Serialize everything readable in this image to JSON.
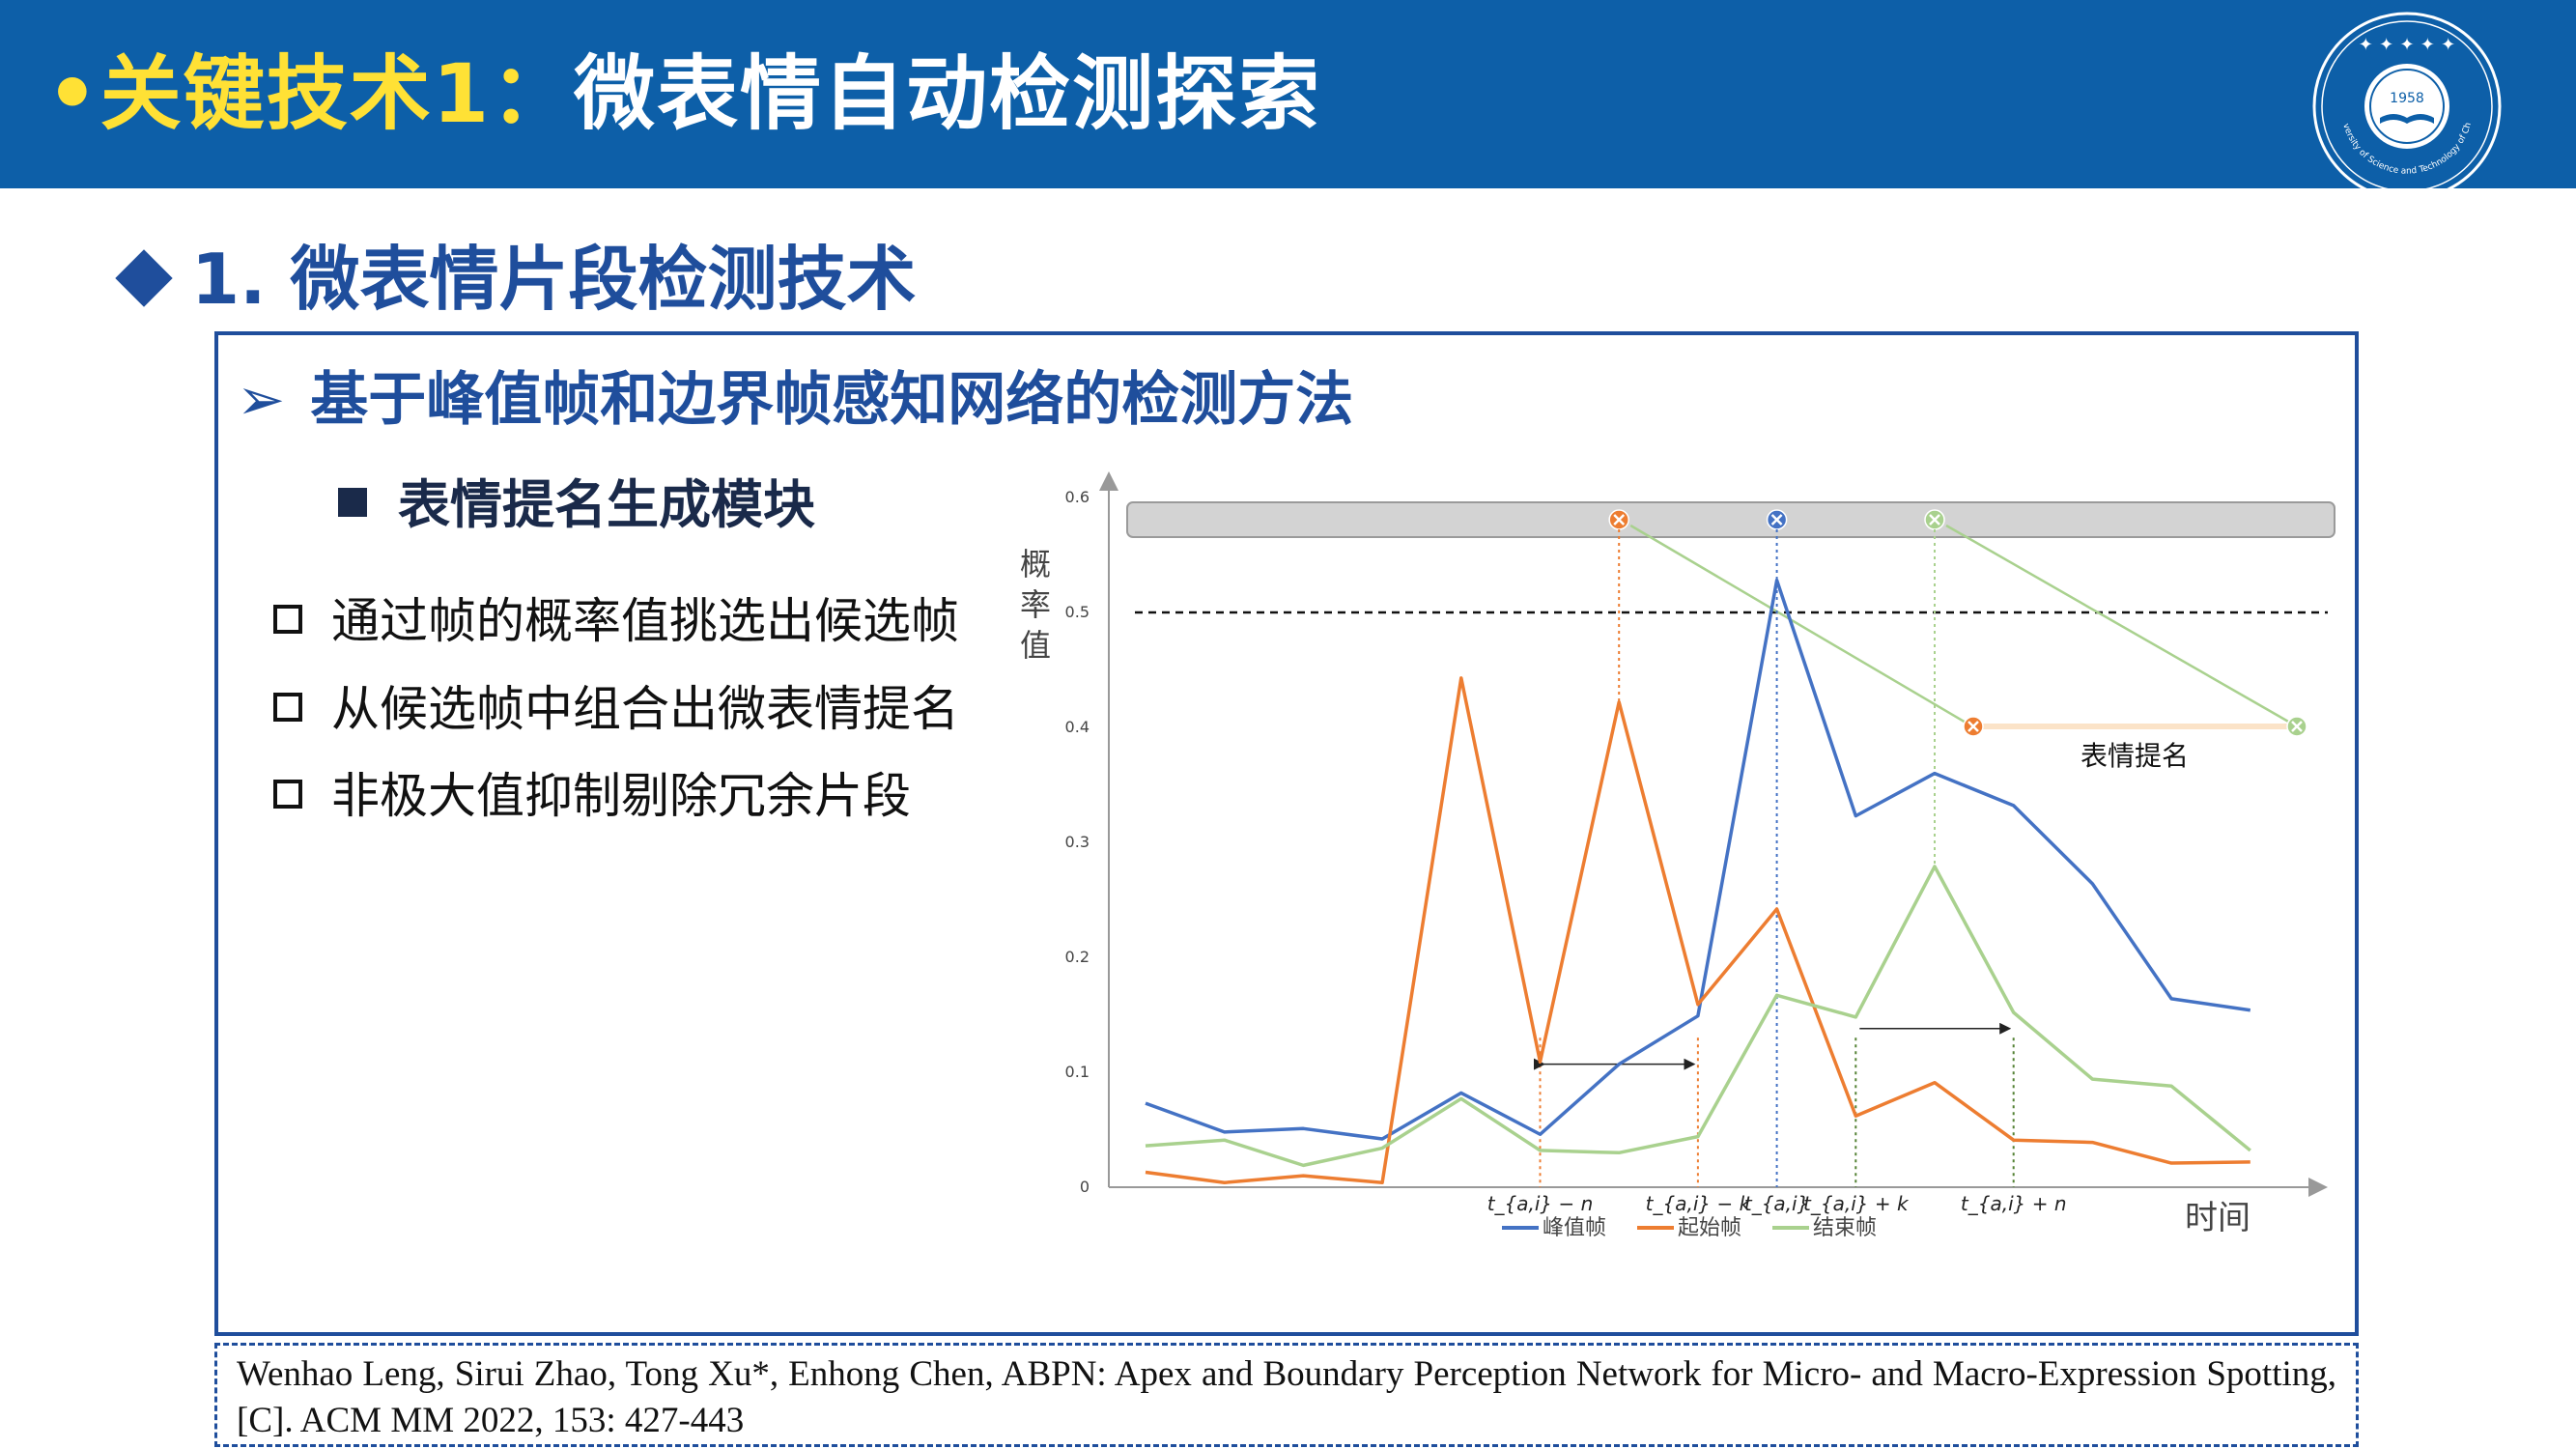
{
  "header": {
    "title_highlight": "•关键技术1：",
    "title_rest": "微表情自动检测探索",
    "logo_year": "1958",
    "logo_text": "University of Science and Technology of China"
  },
  "section": {
    "title": "1. 微表情片段检测技术"
  },
  "content": {
    "subheading": "基于峰值帧和边界帧感知网络的检测方法",
    "module_title": "表情提名生成模块",
    "bullets": [
      "通过帧的概率值挑选出候选帧",
      "从候选帧中组合出微表情提名",
      "非极大值抑制剔除冗余片段"
    ]
  },
  "chart_data": {
    "type": "line",
    "ylabel": "概率值",
    "xlabel": "时间",
    "ylim": [
      0,
      0.6
    ],
    "yticks": [
      "0",
      "0.1",
      "0.2",
      "0.3",
      "0.4",
      "0.5",
      "0.6"
    ],
    "x": [
      0,
      1,
      2,
      3,
      4,
      5,
      6,
      7,
      8,
      9,
      10,
      11,
      12,
      13,
      14
    ],
    "threshold": 0.5,
    "series": [
      {
        "name": "峰值帧",
        "color": "#4472c4",
        "values": [
          0.073,
          0.048,
          0.051,
          0.042,
          0.082,
          0.046,
          0.107,
          0.149,
          0.528,
          0.323,
          0.36,
          0.332,
          0.264,
          0.164,
          0.154
        ]
      },
      {
        "name": "起始帧",
        "color": "#ed7d31",
        "values": [
          0.013,
          0.004,
          0.01,
          0.004,
          0.443,
          0.109,
          0.422,
          0.159,
          0.242,
          0.062,
          0.091,
          0.041,
          0.039,
          0.021,
          0.022
        ]
      },
      {
        "name": "结束帧",
        "color": "#a9d18e",
        "values": [
          0.036,
          0.041,
          0.019,
          0.034,
          0.077,
          0.032,
          0.03,
          0.044,
          0.167,
          0.148,
          0.279,
          0.152,
          0.094,
          0.088,
          0.032
        ]
      }
    ],
    "markers": [
      {
        "label": "t_{a,i} − n",
        "x": 5
      },
      {
        "label": "t_{a,i} − k",
        "x": 7
      },
      {
        "label": "t_{a,i}",
        "x": 8
      },
      {
        "label": "t_{a,i} + k",
        "x": 9
      },
      {
        "label": "t_{a,i} + n",
        "x": 11
      }
    ],
    "proposal_label": "表情提名"
  },
  "citation": "Wenhao Leng, Sirui Zhao, Tong Xu*, Enhong Chen, ABPN: Apex and Boundary Perception Network for Micro- and Macro-Expression Spotting, [C]. ACM MM 2022, 153: 427-443"
}
